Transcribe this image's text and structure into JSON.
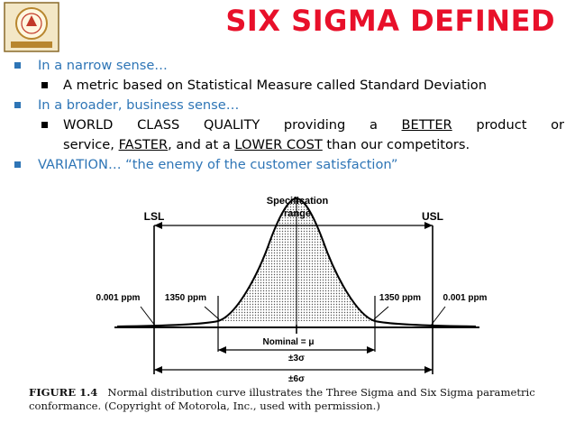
{
  "title": "SIX SIGMA DEFINED",
  "bullets": {
    "b1": "In a narrow sense…",
    "b1_sub": "A metric based on Statistical Measure called Standard Deviation",
    "b2": "In a broader, business sense…",
    "b2_sub": {
      "line1": [
        "WORLD",
        "CLASS",
        "QUALITY",
        "providing",
        "a",
        "BETTER",
        "product",
        "or"
      ],
      "line2_pre": "service, ",
      "faster": "FASTER",
      "line2_mid": ",  and at a ",
      "lower_cost": "LOWER COST",
      "line2_post": " than our competitors."
    },
    "b3": "VARIATION… “the enemy of the customer satisfaction”"
  },
  "figure": {
    "spec_range_line1": "Specification",
    "spec_range_line2": "range",
    "lsl": "LSL",
    "usl": "USL",
    "ppm_outer_left": "0.001 ppm",
    "ppm_inner_left": "1350 ppm",
    "ppm_inner_right": "1350 ppm",
    "ppm_outer_right": "0.001 ppm",
    "nominal": "Nominal = μ",
    "three_sigma": "±3σ",
    "six_sigma": "±6σ"
  },
  "caption": {
    "label": "FIGURE 1.4",
    "text": "Normal distribution curve illustrates the Three Sigma and Six Sigma parametric conformance. (Copyright of Motorola, Inc., used with permission.)"
  },
  "colors": {
    "title": "#e8102a",
    "accent": "#2e75b6"
  },
  "icons": {
    "logo": "institution-seal-logo"
  }
}
